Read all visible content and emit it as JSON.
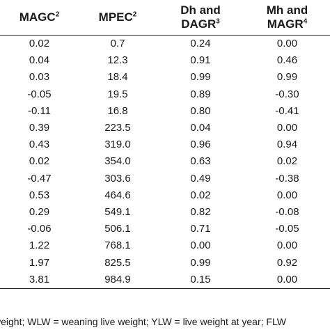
{
  "table": {
    "headers": [
      {
        "text": "MAGC",
        "sup": "2"
      },
      {
        "text": "MPEC",
        "sup": "2"
      },
      {
        "text": "Dh and\nDAGR",
        "sup": "3"
      },
      {
        "text": "Mh and\nMAGR",
        "sup": "4"
      }
    ],
    "rows": [
      [
        "0.02",
        "0.7",
        "0.24",
        "0.00"
      ],
      [
        "0.04",
        "12.3",
        "0.91",
        "0.46"
      ],
      [
        "0.03",
        "18.4",
        "0.99",
        "0.99"
      ],
      [
        "-0.05",
        "19.5",
        "0.89",
        "-0.30"
      ],
      [
        "-0.11",
        "16.8",
        "0.80",
        "-0.41"
      ],
      [
        "0.39",
        "223.5",
        "0.04",
        "0.00"
      ],
      [
        "0.43",
        "319.0",
        "0.96",
        "0.94"
      ],
      [
        "0.02",
        "354.0",
        "0.63",
        "0.02"
      ],
      [
        "-0.47",
        "303.6",
        "0.49",
        "-0.38"
      ],
      [
        "0.53",
        "464.6",
        "0.02",
        "0.00"
      ],
      [
        "0.29",
        "549.1",
        "0.82",
        "-0.08"
      ],
      [
        "-0.06",
        "506.1",
        "0.71",
        "-0.05"
      ],
      [
        "1.22",
        "768.1",
        "0.00",
        "0.00"
      ],
      [
        "1.97",
        "825.5",
        "0.99",
        "0.92"
      ],
      [
        "3.81",
        "984.9",
        "0.15",
        "0.00"
      ]
    ]
  },
  "footnote": "weight; WLW = weaning live weight; YLW = live weight at year; FLW"
}
